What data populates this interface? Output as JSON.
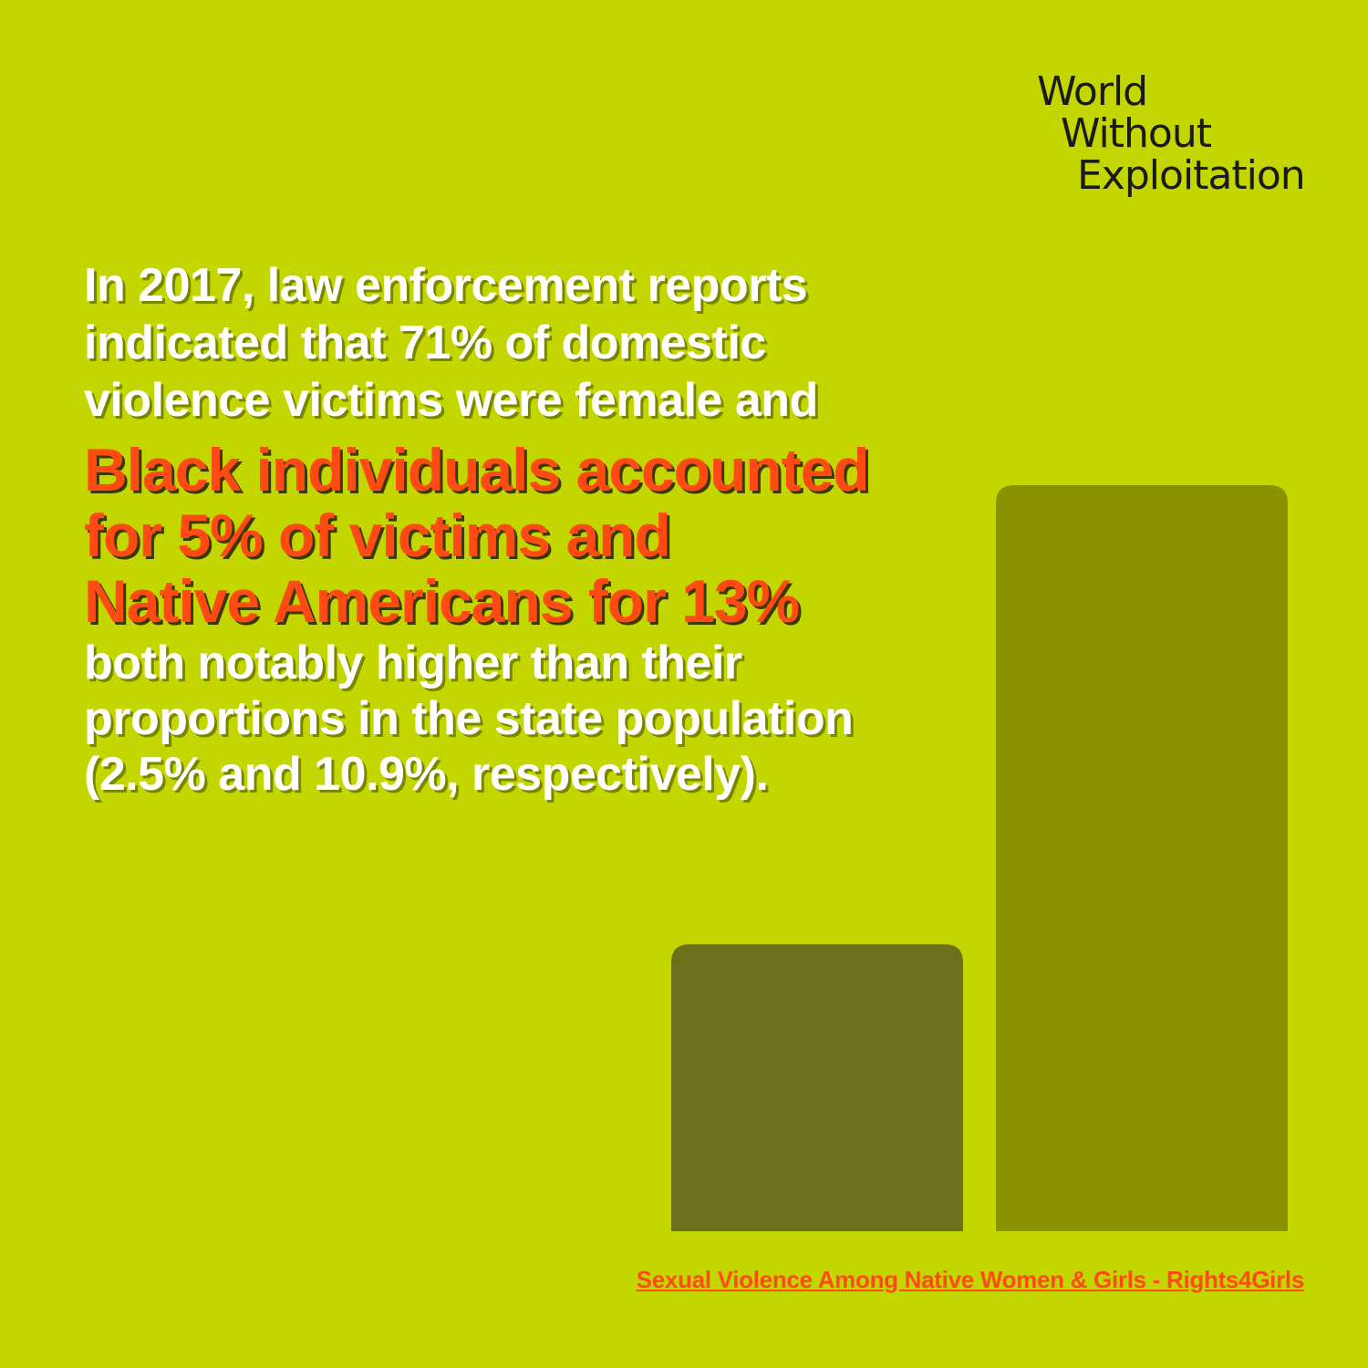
{
  "logo": {
    "line1": "World",
    "line2": "Without",
    "line3": "Exploitation"
  },
  "intro": {
    "line1": "In 2017, law enforcement reports",
    "line2": "indicated that 71% of domestic",
    "line3": "violence victims were female and"
  },
  "highlight": {
    "line1": "Black individuals accounted",
    "line2": "for 5% of victims and",
    "line3": "Native Americans for 13%"
  },
  "outro": {
    "line1": "both notably higher than their",
    "line2": "proportions in the state population",
    "line3": "(2.5% and 10.9%, respectively)."
  },
  "source": "Sexual Violence Among Native Women  & Girls  - Rights4Girls",
  "colors": {
    "background": "#c4d600",
    "accent": "#ff4a14",
    "bar_1": "#69711a",
    "bar_2": "#8a9200"
  },
  "chart_data": {
    "type": "bar",
    "values": [
      5,
      13
    ]
  }
}
